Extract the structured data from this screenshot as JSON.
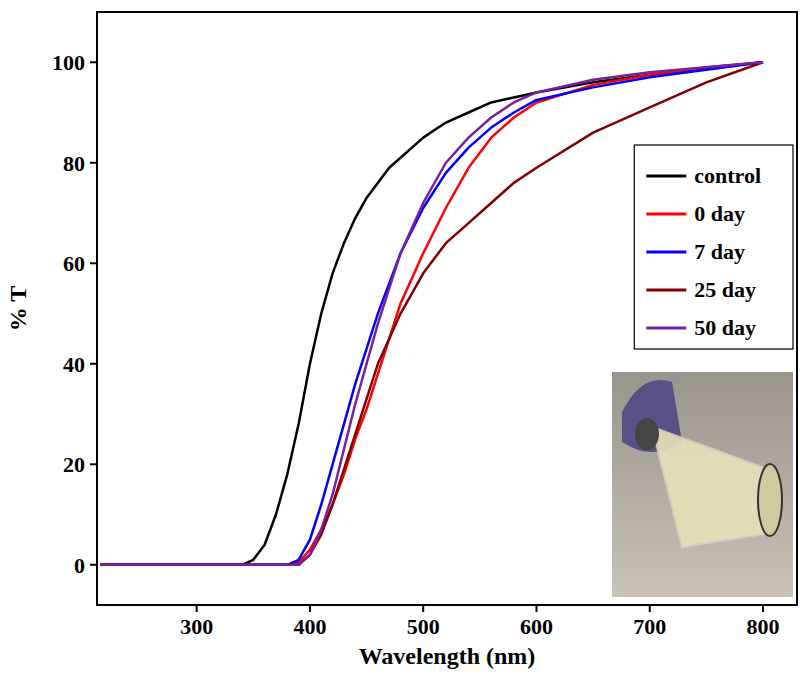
{
  "chart_data": {
    "type": "line",
    "x_label": "Wavelength (nm)",
    "y_label": "% T",
    "x": [
      215,
      300,
      340,
      350,
      360,
      370,
      380,
      390,
      400,
      410,
      420,
      430,
      440,
      450,
      460,
      470,
      480,
      500,
      520,
      540,
      560,
      580,
      600,
      650,
      700,
      750,
      800
    ],
    "series": [
      {
        "name": "control",
        "color": "#000000",
        "values": [
          0,
          0,
          0,
          1,
          4,
          10,
          18,
          28,
          40,
          50,
          58,
          64,
          69,
          73,
          76,
          79,
          81,
          85,
          88,
          90,
          92,
          93,
          94,
          96,
          97.5,
          98.8,
          100
        ]
      },
      {
        "name": "0 day",
        "color": "#ff0000",
        "values": [
          0,
          0,
          0,
          0,
          0,
          0,
          0,
          0.5,
          3,
          7,
          12,
          18,
          25,
          31,
          38,
          45,
          52,
          62,
          71,
          79,
          85,
          89,
          92,
          95.5,
          97.5,
          99,
          100
        ]
      },
      {
        "name": "7 day",
        "color": "#0000ff",
        "values": [
          0,
          0,
          0,
          0,
          0,
          0,
          0,
          1,
          5,
          12,
          20,
          28,
          36,
          43,
          50,
          56,
          62,
          71,
          78,
          83,
          87,
          90,
          92.5,
          95,
          97,
          98.5,
          100
        ]
      },
      {
        "name": "25 day",
        "color": "#800000",
        "values": [
          0,
          0,
          0,
          0,
          0,
          0,
          0,
          0,
          2,
          6,
          12,
          19,
          26,
          33,
          40,
          45,
          50,
          58,
          64,
          68,
          72,
          76,
          79,
          86,
          91,
          96,
          100
        ]
      },
      {
        "name": "50 day",
        "color": "#7a1fa0",
        "values": [
          0,
          0,
          0,
          0,
          0,
          0,
          0,
          0,
          2,
          7,
          14,
          23,
          32,
          40,
          48,
          55,
          62,
          72,
          80,
          85,
          89,
          92,
          94,
          96.5,
          98,
          99,
          100
        ]
      }
    ],
    "xlim": [
      212,
      830
    ],
    "ylim": [
      -8,
      110
    ],
    "xticks": [
      300,
      400,
      500,
      600,
      700,
      800
    ],
    "yticks": [
      0,
      20,
      40,
      60,
      80,
      100
    ],
    "legend": "upper right",
    "grid": false
  }
}
